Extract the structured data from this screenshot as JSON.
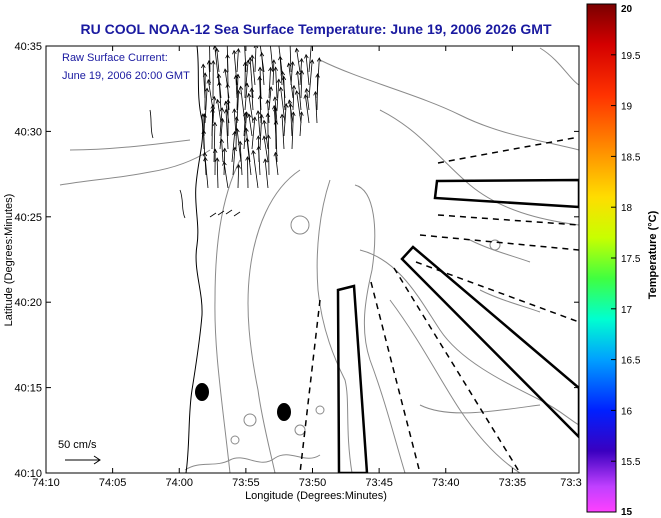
{
  "title": "RU COOL  NOAA-12  Sea Surface Temperature:  June 19, 2006 2026 GMT",
  "annotation": {
    "line1": "Raw Surface Current:",
    "line2": "June 19, 2006 20:00 GMT"
  },
  "scale_label": "50 cm/s",
  "colors": {
    "title": "#1a1aa0",
    "annotation": "#1a1aa0",
    "coast": "#000000",
    "contours": "#8a8a8a"
  },
  "chart_data": {
    "type": "map-vector-field",
    "xlabel": "Longitude (Degrees:Minutes)",
    "ylabel": "Latitude (Degrees:Minutes)",
    "xticks": [
      "74:10",
      "74:05",
      "74:00",
      "73:55",
      "73:50",
      "73:45",
      "73:40",
      "73:35",
      "73:3"
    ],
    "yticks": [
      "40:35",
      "40:30",
      "40:25",
      "40:20",
      "40:15",
      "40:10"
    ],
    "xlim_minutes_west": [
      70,
      30
    ],
    "ylim_minutes_north": [
      10,
      35
    ],
    "colorbar": {
      "label": "Temperature (°C)",
      "ticks": [
        "20",
        "19.5",
        "19",
        "18.5",
        "18",
        "17.5",
        "17",
        "16.5",
        "16",
        "15.5",
        "15"
      ],
      "range": [
        15,
        20
      ]
    },
    "scale_vector_cm_s": 50
  }
}
